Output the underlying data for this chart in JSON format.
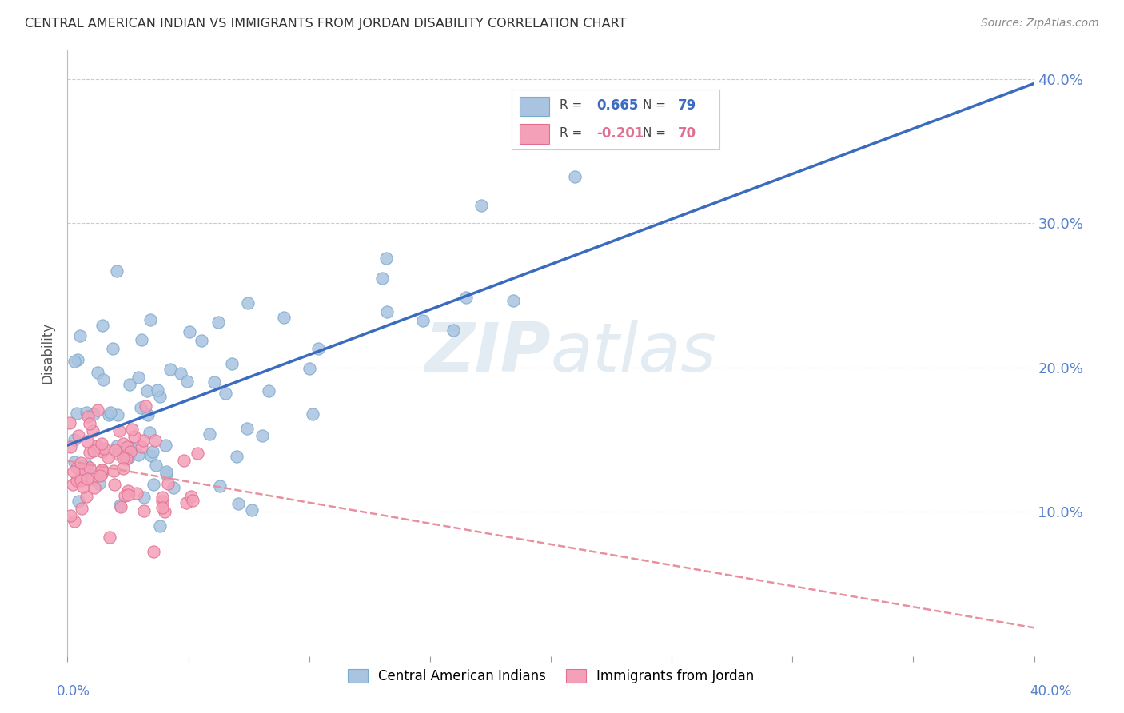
{
  "title": "CENTRAL AMERICAN INDIAN VS IMMIGRANTS FROM JORDAN DISABILITY CORRELATION CHART",
  "source": "Source: ZipAtlas.com",
  "ylabel": "Disability",
  "xlim": [
    0.0,
    0.4
  ],
  "ylim": [
    0.0,
    0.42
  ],
  "ytick_values": [
    0.1,
    0.2,
    0.3,
    0.4
  ],
  "ytick_labels": [
    "10.0%",
    "20.0%",
    "30.0%",
    "40.0%"
  ],
  "xtick_values": [
    0.0,
    0.05,
    0.1,
    0.15,
    0.2,
    0.25,
    0.3,
    0.35,
    0.4
  ],
  "legend1_R": "0.665",
  "legend1_N": "79",
  "legend2_R": "-0.201",
  "legend2_N": "70",
  "blue_color": "#A8C4E0",
  "blue_edge_color": "#7AAACE",
  "pink_color": "#F4A0B8",
  "pink_edge_color": "#E07090",
  "blue_line_color": "#3B6BBF",
  "pink_line_color": "#E8909F",
  "watermark_color": "#C8D8E8",
  "grid_color": "#CCCCCC",
  "background_color": "#FFFFFF",
  "title_color": "#333333",
  "source_color": "#888888",
  "right_tick_color": "#5580CC"
}
